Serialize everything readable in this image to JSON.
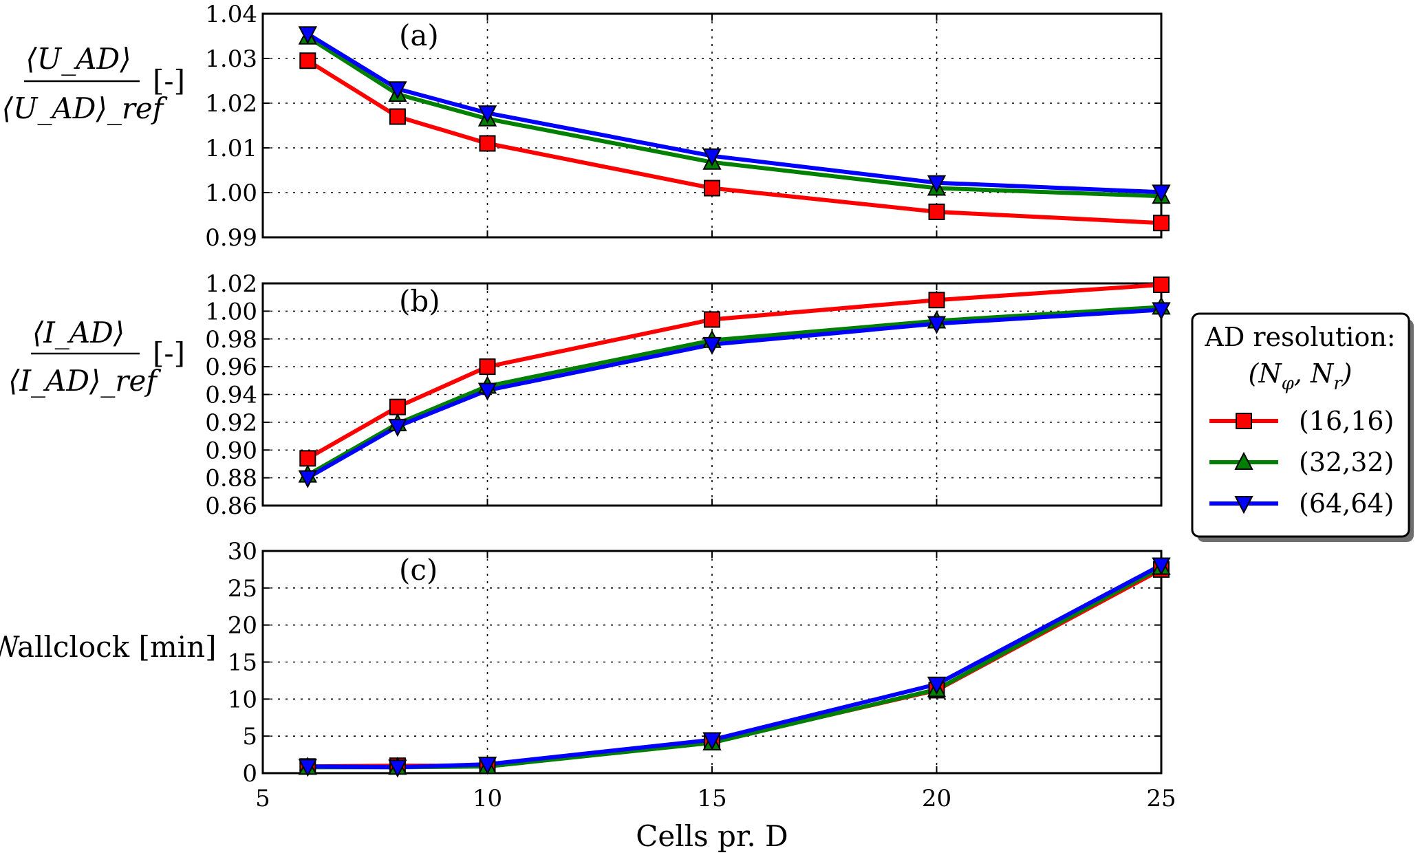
{
  "chart_data": {
    "type": "line",
    "xlabel": "Cells pr. D",
    "xlim": [
      5,
      25
    ],
    "xticks": [
      5,
      10,
      15,
      20,
      25
    ],
    "x": [
      6,
      8,
      10,
      15,
      20,
      25
    ],
    "grid": true,
    "legend": {
      "placement": "right",
      "title_line1": "AD resolution:",
      "title_line2": "(N_φ, N_r)"
    },
    "series_styles": [
      {
        "label": "(16,16)",
        "color": "#ff0000",
        "marker": "square"
      },
      {
        "label": "(32,32)",
        "color": "#008000",
        "marker": "triangle-up"
      },
      {
        "label": "(64,64)",
        "color": "#0000ff",
        "marker": "triangle-down"
      }
    ],
    "panels": [
      {
        "id": "a",
        "label": "(a)",
        "ylabel_num": "⟨U_AD⟩",
        "ylabel_den": "⟨U_AD⟩_ref",
        "ylabel_unit": "[-]",
        "ylim": [
          0.99,
          1.04
        ],
        "yticks": [
          "0.99",
          "1.00",
          "1.01",
          "1.02",
          "1.03",
          "1.04"
        ],
        "series": [
          {
            "name": "(16,16)",
            "values": [
              1.0295,
              1.017,
              1.011,
              1.001,
              0.9957,
              0.9932
            ]
          },
          {
            "name": "(32,32)",
            "values": [
              1.0348,
              1.022,
              1.0165,
              1.0068,
              1.001,
              0.9992
            ]
          },
          {
            "name": "(64,64)",
            "values": [
              1.0355,
              1.0232,
              1.0178,
              1.0082,
              1.0022,
              1.0001
            ]
          }
        ]
      },
      {
        "id": "b",
        "label": "(b)",
        "ylabel_num": "⟨I_AD⟩",
        "ylabel_den": "⟨I_AD⟩_ref",
        "ylabel_unit": "[-]",
        "ylim": [
          0.86,
          1.02
        ],
        "yticks": [
          "0.86",
          "0.88",
          "0.90",
          "0.92",
          "0.94",
          "0.96",
          "0.98",
          "1.00",
          "1.02"
        ],
        "series": [
          {
            "name": "(16,16)",
            "values": [
              0.894,
              0.931,
              0.96,
              0.994,
              1.008,
              1.019
            ]
          },
          {
            "name": "(32,32)",
            "values": [
              0.882,
              0.919,
              0.946,
              0.979,
              0.993,
              1.003
            ]
          },
          {
            "name": "(64,64)",
            "values": [
              0.88,
              0.917,
              0.943,
              0.976,
              0.991,
              1.001
            ]
          }
        ]
      },
      {
        "id": "c",
        "label": "(c)",
        "ylabel": "Wallclock [min]",
        "ylim": [
          0,
          30
        ],
        "yticks": [
          "0",
          "5",
          "10",
          "15",
          "20",
          "25",
          "30"
        ],
        "series": [
          {
            "name": "(16,16)",
            "values": [
              0.9,
              1.0,
              1.0,
              4.2,
              11.2,
              27.5
            ]
          },
          {
            "name": "(32,32)",
            "values": [
              0.8,
              0.8,
              0.9,
              4.1,
              11.3,
              27.8
            ]
          },
          {
            "name": "(64,64)",
            "values": [
              0.9,
              0.8,
              1.2,
              4.5,
              12.0,
              28.1
            ]
          }
        ]
      }
    ]
  }
}
